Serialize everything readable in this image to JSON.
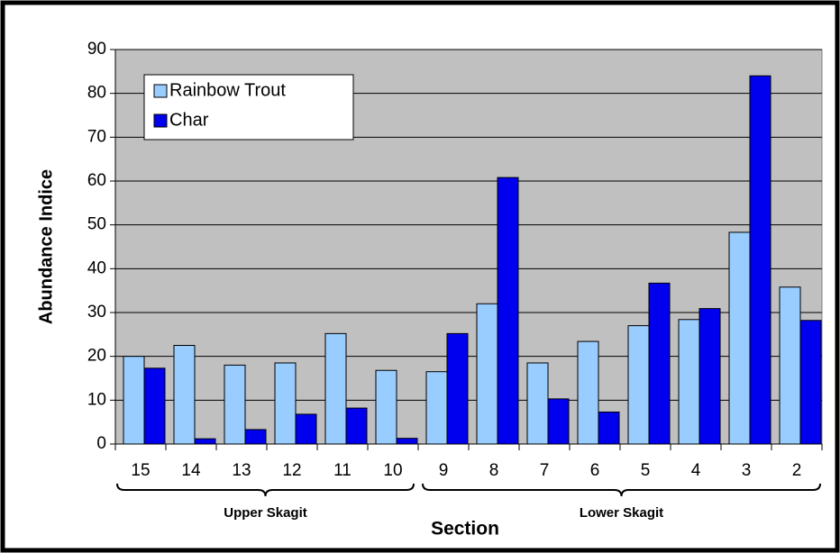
{
  "chart_data": {
    "type": "bar",
    "y_label": "Abundance Indice",
    "x_label": "Section",
    "categories": [
      "15",
      "14",
      "13",
      "12",
      "11",
      "10",
      "9",
      "8",
      "7",
      "6",
      "5",
      "4",
      "3",
      "2"
    ],
    "groups": [
      "Upper Skagit",
      "Lower Skagit"
    ],
    "series": [
      {
        "name": "Rainbow Trout",
        "color": "#99ccff",
        "values": [
          20,
          22.5,
          18,
          18.5,
          25.2,
          16.8,
          16.5,
          32,
          18.5,
          23.4,
          27,
          28.4,
          48.3,
          35.8
        ]
      },
      {
        "name": "Char",
        "color": "#0000ee",
        "values": [
          17.3,
          1.2,
          3.3,
          6.8,
          8.2,
          1.3,
          25.2,
          60.8,
          10.3,
          7.3,
          36.7,
          30.9,
          84,
          28.2
        ]
      }
    ],
    "ylim": [
      0,
      90
    ],
    "yticks": [
      0,
      10,
      20,
      30,
      40,
      50,
      60,
      70,
      80,
      90
    ],
    "grid": true,
    "legend": "top-left",
    "plot_background": "#c0c0c0"
  }
}
